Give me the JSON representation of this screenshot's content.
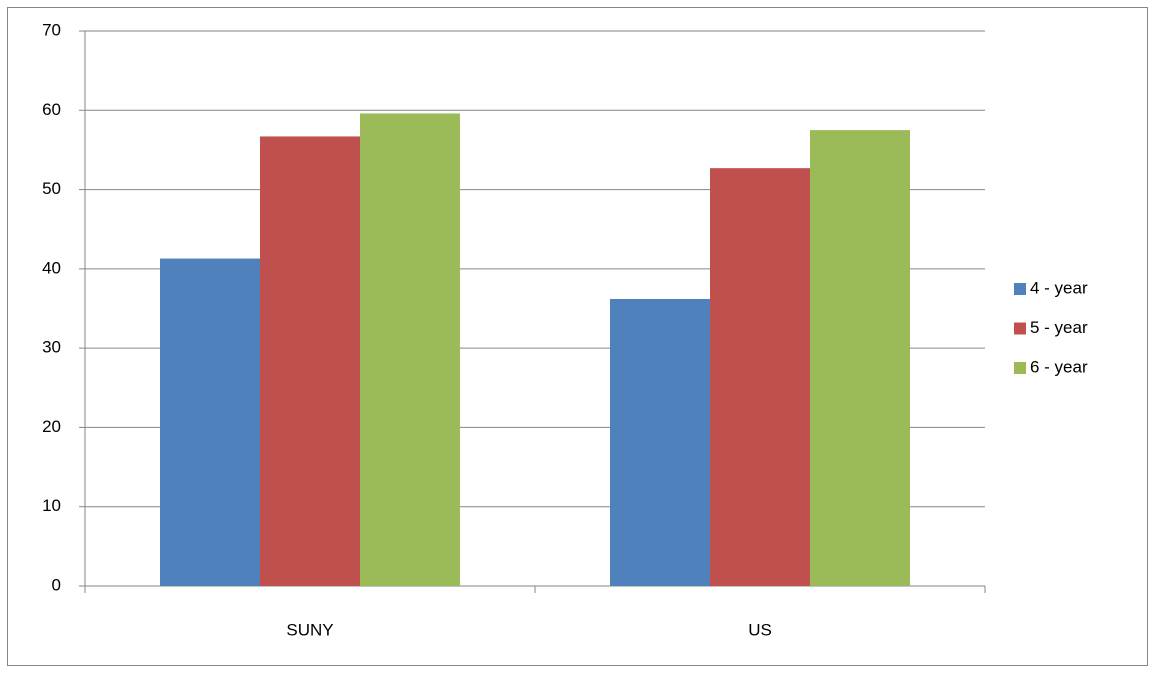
{
  "chart_data": {
    "type": "bar",
    "categories": [
      "SUNY",
      "US"
    ],
    "series": [
      {
        "name": "4 - year",
        "color": "#4f81bd",
        "values": [
          41.3,
          36.2
        ]
      },
      {
        "name": "5 - year",
        "color": "#c0504d",
        "values": [
          56.7,
          52.7
        ]
      },
      {
        "name": "6 - year",
        "color": "#9bbb59",
        "values": [
          59.6,
          57.5
        ]
      }
    ],
    "ylim": [
      0,
      70
    ],
    "yticks": [
      0,
      10,
      20,
      30,
      40,
      50,
      60,
      70
    ],
    "grid": true,
    "legend": "right"
  }
}
